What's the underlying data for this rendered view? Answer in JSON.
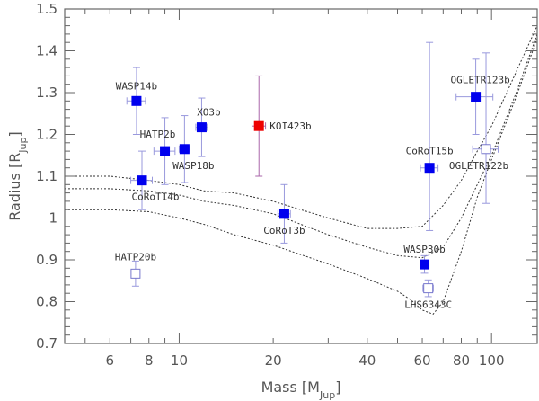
{
  "chart_data": {
    "type": "scatter",
    "xscale": "log",
    "xlim": [
      4.3,
      140
    ],
    "ylim": [
      0.7,
      1.5
    ],
    "xticks_major": [
      10,
      100
    ],
    "xticks_minor": [
      5,
      6,
      7,
      8,
      9,
      20,
      30,
      40,
      50,
      60,
      70,
      80,
      90
    ],
    "xtick_labels": [
      {
        "value": 6,
        "label": "6"
      },
      {
        "value": 8,
        "label": "8"
      },
      {
        "value": 10,
        "label": "10"
      },
      {
        "value": 20,
        "label": "20"
      },
      {
        "value": 40,
        "label": "40"
      },
      {
        "value": 60,
        "label": "60"
      },
      {
        "value": 80,
        "label": "80"
      },
      {
        "value": 100,
        "label": "100"
      }
    ],
    "yticks": [
      {
        "value": 0.7,
        "label": "0.7"
      },
      {
        "value": 0.8,
        "label": "0.8"
      },
      {
        "value": 0.9,
        "label": "0.9"
      },
      {
        "value": 1.0,
        "label": "1"
      },
      {
        "value": 1.1,
        "label": "1.1"
      },
      {
        "value": 1.2,
        "label": "1.2"
      },
      {
        "value": 1.3,
        "label": "1.3"
      },
      {
        "value": 1.4,
        "label": "1.4"
      },
      {
        "value": 1.5,
        "label": "1.5"
      }
    ],
    "xlabel": {
      "main": "Mass [M",
      "sub": "Jup",
      "close": "]"
    },
    "ylabel": {
      "main": "Radius [R",
      "sub": "Jup",
      "close": "]"
    },
    "colors": {
      "filled": "#0000ee",
      "highlight": "#ee0000",
      "errorbar": "#9999dd",
      "highlight_errorbar": "#aa66aa",
      "open": "#7777cc",
      "curve": "#333333",
      "axis": "#666666"
    },
    "points": [
      {
        "name": "WASP14b",
        "x": 7.3,
        "y": 1.28,
        "xerr": [
          0.5,
          0.5
        ],
        "yerr": [
          0.08,
          0.08
        ],
        "marker": "filled",
        "label_dx": 0,
        "label_dy": -1,
        "anchor": "middle"
      },
      {
        "name": "HATP2b",
        "x": 9.0,
        "y": 1.16,
        "xerr": [
          0.7,
          0.7
        ],
        "yerr": [
          0.08,
          0.08
        ],
        "marker": "filled",
        "label_dx": -8,
        "label_dy": -1,
        "anchor": "middle"
      },
      {
        "name": "XO3b",
        "x": 11.8,
        "y": 1.217,
        "xerr": [
          0.5,
          0.5
        ],
        "yerr": [
          0.07,
          0.07
        ],
        "marker": "filled",
        "label_dx": 8,
        "label_dy": -1,
        "anchor": "middle"
      },
      {
        "name": "WASP18b",
        "x": 10.4,
        "y": 1.165,
        "xerr": [
          0.4,
          0.4
        ],
        "yerr": [
          0.08,
          0.08
        ],
        "marker": "filled",
        "label_dx": 10,
        "label_dy": 1,
        "anchor": "middle"
      },
      {
        "name": "CoRoT14b",
        "x": 7.6,
        "y": 1.09,
        "xerr": [
          0.6,
          0.6
        ],
        "yerr": [
          0.07,
          0.07
        ],
        "marker": "filled",
        "label_dx": 15,
        "label_dy": 1,
        "anchor": "middle"
      },
      {
        "name": "KOI423b",
        "x": 18.0,
        "y": 1.22,
        "xerr": [
          0.9,
          0.9
        ],
        "yerr": [
          0.12,
          0.12
        ],
        "marker": "highlight",
        "label_dx": 1,
        "label_dy": 0,
        "anchor": "start"
      },
      {
        "name": "CoRoT3b",
        "x": 21.7,
        "y": 1.01,
        "xerr": [
          1.0,
          1.0
        ],
        "yerr": [
          0.07,
          0.07
        ],
        "marker": "filled",
        "label_dx": 0,
        "label_dy": 1,
        "anchor": "middle"
      },
      {
        "name": "CoRoT15b",
        "x": 63.3,
        "y": 1.12,
        "xerr": [
          4.1,
          4.1
        ],
        "yerr": [
          0.15,
          0.3
        ],
        "marker": "filled",
        "label_dx": 0,
        "label_dy": -1,
        "anchor": "middle"
      },
      {
        "name": "OGLETR123b",
        "x": 89.0,
        "y": 1.29,
        "xerr": [
          12.0,
          12.0
        ],
        "yerr": [
          0.09,
          0.09
        ],
        "marker": "filled",
        "label_dx": 5,
        "label_dy": -1,
        "anchor": "middle"
      },
      {
        "name": "OGLETR122b",
        "x": 96.0,
        "y": 1.165,
        "xerr": [
          9.0,
          9.0
        ],
        "yerr": [
          0.13,
          0.23
        ],
        "marker": "open",
        "label_dx": -8,
        "label_dy": 1,
        "anchor": "middle"
      },
      {
        "name": "WASP30b",
        "x": 61.0,
        "y": 0.889,
        "xerr": [
          0.7,
          0.7
        ],
        "yerr": [
          0.021,
          0.021
        ],
        "marker": "filled",
        "label_dx": 0,
        "label_dy": -1,
        "anchor": "middle"
      },
      {
        "name": "LHS6343C",
        "x": 62.7,
        "y": 0.832,
        "xerr": [
          2.4,
          2.4
        ],
        "yerr": [
          0.02,
          0.02
        ],
        "marker": "open",
        "label_dx": 0,
        "label_dy": 1,
        "anchor": "middle"
      },
      {
        "name": "HATP20b",
        "x": 7.25,
        "y": 0.867,
        "xerr": [
          0.2,
          0.2
        ],
        "yerr": [
          0.03,
          0.03
        ],
        "marker": "open",
        "label_dx": 0,
        "label_dy": -1,
        "anchor": "middle"
      }
    ],
    "curves": [
      {
        "name": "",
        "dash": "dot",
        "x": [
          4.3,
          6,
          8,
          10,
          12,
          15,
          20,
          30,
          40,
          50,
          60,
          70,
          80,
          90,
          100,
          120,
          140
        ],
        "y": [
          1.1,
          1.1,
          1.09,
          1.08,
          1.065,
          1.06,
          1.04,
          1.0,
          0.975,
          0.975,
          0.98,
          1.03,
          1.09,
          1.16,
          1.22,
          1.35,
          1.46
        ]
      },
      {
        "name": "",
        "dash": "dot",
        "x": [
          4.3,
          6,
          8,
          10,
          12,
          15,
          20,
          30,
          40,
          50,
          60,
          70,
          80,
          90,
          100,
          120,
          140
        ],
        "y": [
          1.07,
          1.07,
          1.065,
          1.055,
          1.04,
          1.03,
          1.01,
          0.96,
          0.93,
          0.91,
          0.905,
          0.93,
          1.0,
          1.08,
          1.15,
          1.3,
          1.44
        ]
      },
      {
        "name": "",
        "dash": "dot",
        "x": [
          4.3,
          6,
          8,
          10,
          12,
          15,
          20,
          30,
          40,
          50,
          55,
          60,
          65,
          70,
          80,
          90,
          100,
          120,
          140
        ],
        "y": [
          1.02,
          1.02,
          1.015,
          1.0,
          0.985,
          0.96,
          0.935,
          0.89,
          0.855,
          0.825,
          0.805,
          0.78,
          0.77,
          0.8,
          0.92,
          1.05,
          1.14,
          1.29,
          1.43
        ]
      }
    ]
  }
}
